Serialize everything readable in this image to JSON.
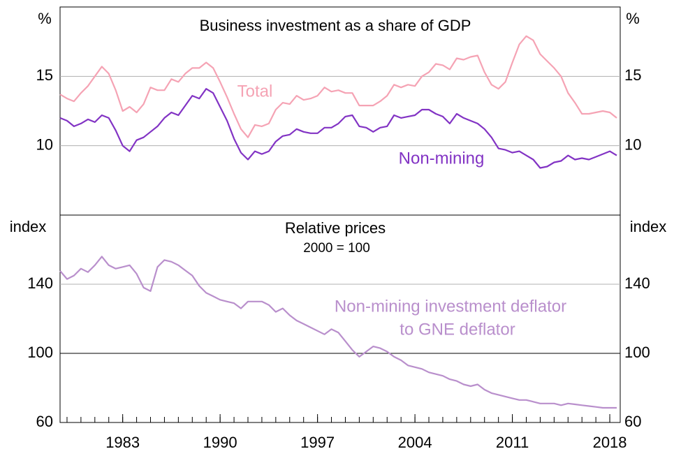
{
  "chart_data": [
    {
      "type": "line",
      "title": "Business investment as a share of GDP",
      "y_label": "%",
      "x": [
        1978.5,
        1979,
        1979.5,
        1980,
        1980.5,
        1981,
        1981.5,
        1982,
        1982.5,
        1983,
        1983.5,
        1984,
        1984.5,
        1985,
        1985.5,
        1986,
        1986.5,
        1987,
        1987.5,
        1988,
        1988.5,
        1989,
        1989.5,
        1990,
        1990.5,
        1991,
        1991.5,
        1992,
        1992.5,
        1993,
        1993.5,
        1994,
        1994.5,
        1995,
        1995.5,
        1996,
        1996.5,
        1997,
        1997.5,
        1998,
        1998.5,
        1999,
        1999.5,
        2000,
        2000.5,
        2001,
        2001.5,
        2002,
        2002.5,
        2003,
        2003.5,
        2004,
        2004.5,
        2005,
        2005.5,
        2006,
        2006.5,
        2007,
        2007.5,
        2008,
        2008.5,
        2009,
        2009.5,
        2010,
        2010.5,
        2011,
        2011.5,
        2012,
        2012.5,
        2013,
        2013.5,
        2014,
        2014.5,
        2015,
        2015.5,
        2016,
        2016.5,
        2017,
        2017.5,
        2018,
        2018.5
      ],
      "series": [
        {
          "name": "Total",
          "color": "#f5a3b4",
          "values": [
            13.7,
            13.4,
            13.2,
            13.8,
            14.3,
            15.0,
            15.7,
            15.2,
            14.0,
            12.5,
            12.8,
            12.4,
            13.0,
            14.2,
            14.0,
            14.0,
            14.8,
            14.6,
            15.2,
            15.6,
            15.6,
            16.0,
            15.6,
            14.6,
            13.5,
            12.3,
            11.2,
            10.6,
            11.5,
            11.4,
            11.6,
            12.6,
            13.1,
            13.0,
            13.6,
            13.3,
            13.4,
            13.6,
            14.2,
            13.9,
            14.0,
            13.8,
            13.8,
            12.9,
            12.9,
            12.9,
            13.2,
            13.6,
            14.4,
            14.2,
            14.4,
            14.3,
            15.0,
            15.3,
            15.9,
            15.8,
            15.5,
            16.3,
            16.2,
            16.4,
            16.5,
            15.3,
            14.4,
            14.1,
            14.6,
            16.0,
            17.3,
            17.9,
            17.6,
            16.6,
            16.1,
            15.6,
            15.0,
            13.8,
            13.1,
            12.3,
            12.3,
            12.4,
            12.5,
            12.4,
            12.0
          ]
        },
        {
          "name": "Non-mining",
          "color": "#8233c4",
          "values": [
            12.0,
            11.8,
            11.4,
            11.6,
            11.9,
            11.7,
            12.2,
            12.0,
            11.1,
            10.0,
            9.6,
            10.4,
            10.6,
            11.0,
            11.4,
            12.0,
            12.4,
            12.2,
            12.9,
            13.6,
            13.4,
            14.1,
            13.8,
            12.8,
            11.8,
            10.5,
            9.5,
            9.0,
            9.6,
            9.4,
            9.6,
            10.3,
            10.7,
            10.8,
            11.2,
            11.0,
            10.9,
            10.9,
            11.3,
            11.3,
            11.6,
            12.1,
            12.2,
            11.4,
            11.3,
            11.0,
            11.3,
            11.4,
            12.2,
            12.0,
            12.1,
            12.2,
            12.6,
            12.6,
            12.3,
            12.1,
            11.6,
            12.3,
            12.0,
            11.8,
            11.6,
            11.2,
            10.6,
            9.8,
            9.7,
            9.5,
            9.6,
            9.3,
            9.0,
            8.4,
            8.5,
            8.8,
            8.9,
            9.3,
            9.0,
            9.1,
            9.0,
            9.2,
            9.4,
            9.6,
            9.3
          ]
        }
      ],
      "xlim": [
        1978.5,
        2018.75
      ],
      "ylim": [
        5,
        20
      ],
      "yticks": [
        10,
        15
      ],
      "grid": true
    },
    {
      "type": "line",
      "title": "Relative prices",
      "subtitle": "2000 = 100",
      "y_label": "index",
      "x": [
        1978.5,
        1979,
        1979.5,
        1980,
        1980.5,
        1981,
        1981.5,
        1982,
        1982.5,
        1983,
        1983.5,
        1984,
        1984.5,
        1985,
        1985.5,
        1986,
        1986.5,
        1987,
        1987.5,
        1988,
        1988.5,
        1989,
        1989.5,
        1990,
        1990.5,
        1991,
        1991.5,
        1992,
        1992.5,
        1993,
        1993.5,
        1994,
        1994.5,
        1995,
        1995.5,
        1996,
        1996.5,
        1997,
        1997.5,
        1998,
        1998.5,
        1999,
        1999.5,
        2000,
        2000.5,
        2001,
        2001.5,
        2002,
        2002.5,
        2003,
        2003.5,
        2004,
        2004.5,
        2005,
        2005.5,
        2006,
        2006.5,
        2007,
        2007.5,
        2008,
        2008.5,
        2009,
        2009.5,
        2010,
        2010.5,
        2011,
        2011.5,
        2012,
        2012.5,
        2013,
        2013.5,
        2014,
        2014.5,
        2015,
        2015.5,
        2016,
        2016.5,
        2017,
        2017.5,
        2018,
        2018.5
      ],
      "series": [
        {
          "name": [
            "Non-mining investment deflator",
            "to GNE deflator"
          ],
          "color": "#b98fcc",
          "values": [
            147.7,
            143,
            145,
            149,
            147,
            151,
            156,
            151,
            149,
            150,
            151,
            146,
            138,
            136,
            150,
            154,
            153,
            151,
            148,
            145,
            139,
            135,
            133,
            131,
            130,
            129,
            126,
            130,
            130,
            130,
            128,
            124,
            126,
            122,
            119,
            117,
            115,
            113,
            111,
            114,
            112,
            107,
            102,
            98,
            101,
            104,
            103,
            101,
            98,
            96,
            93,
            92,
            91,
            89,
            88,
            87,
            85,
            84,
            82,
            81,
            82,
            79,
            77,
            76,
            75,
            74,
            73,
            73,
            72,
            71,
            71,
            71,
            70,
            71,
            70.5,
            70,
            69.5,
            69,
            68.5,
            68.5,
            68.5
          ]
        }
      ],
      "xlim": [
        1978.5,
        2018.75
      ],
      "ylim": [
        60,
        180
      ],
      "yticks": [
        60,
        100,
        140
      ],
      "grid": true,
      "reference_line": 100,
      "xticks": [
        1983,
        1990,
        1997,
        2004,
        2011,
        2018
      ]
    }
  ]
}
